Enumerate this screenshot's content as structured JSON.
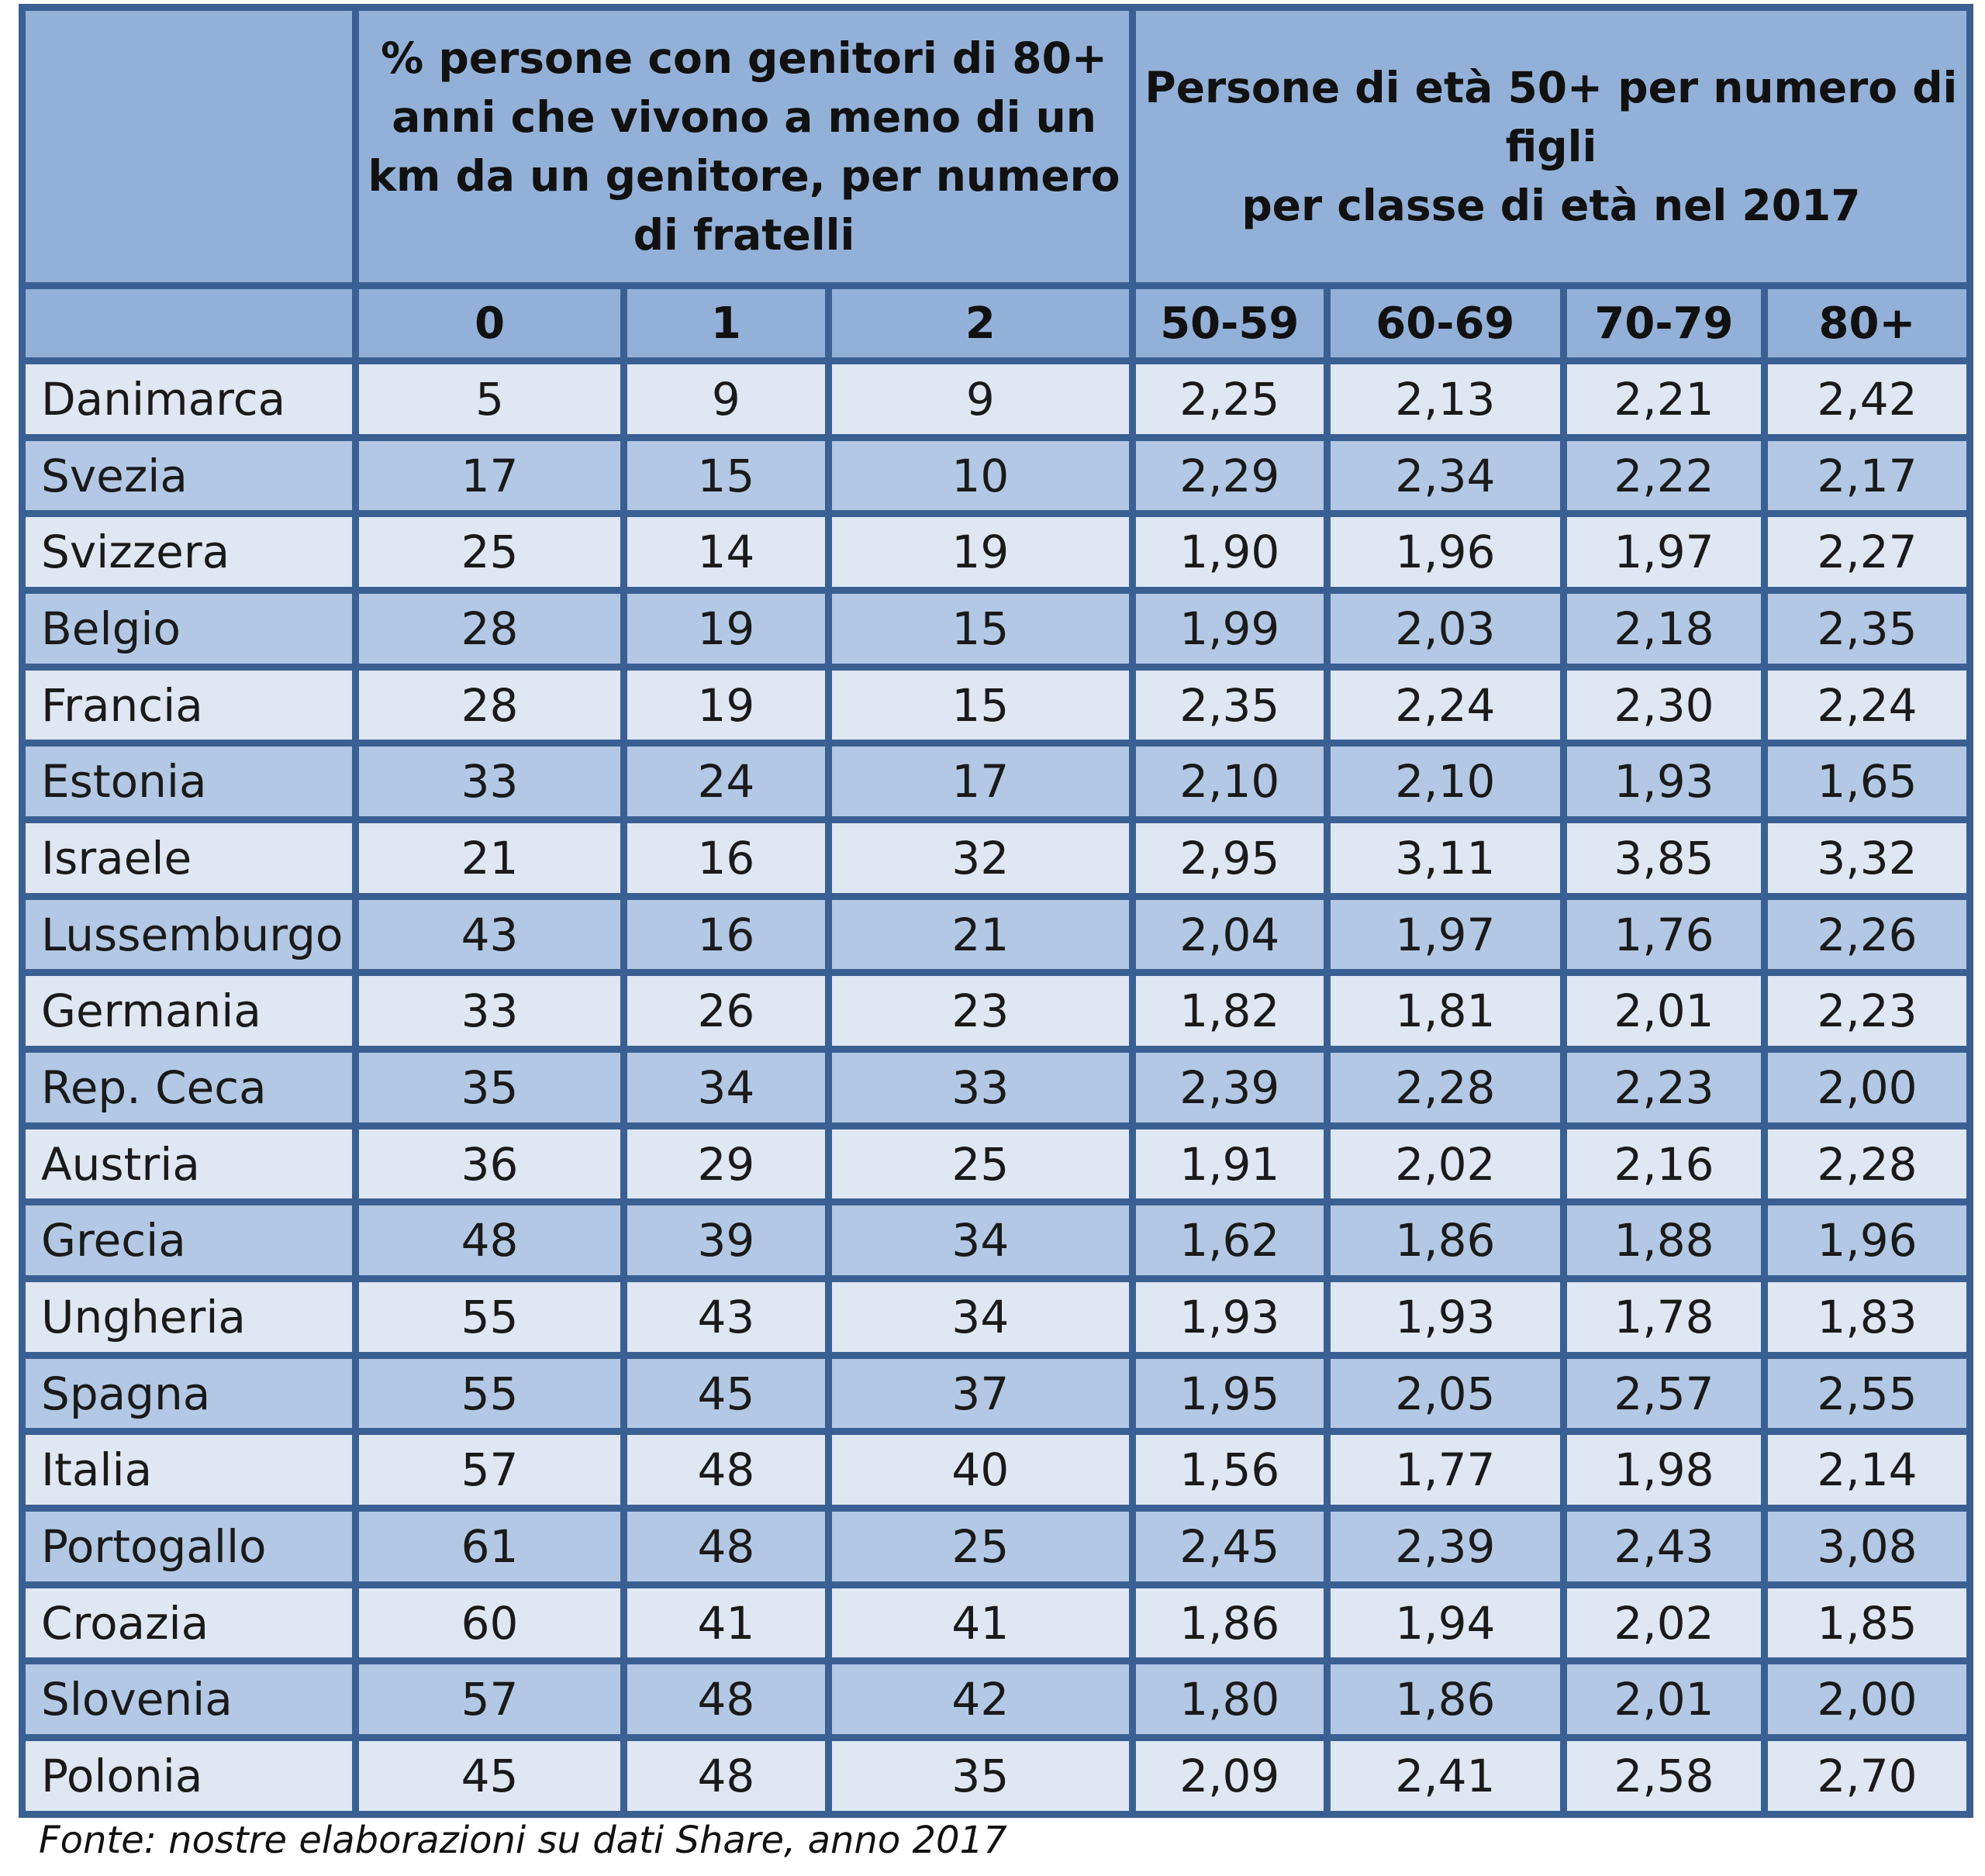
{
  "header": {
    "group1": "% persone con genitori di 80+ anni che vivono a meno di un km da un genitore, per numero di fratelli",
    "group1_lines": [
      "% persone con genitori di 80+",
      "anni che vivono a meno di un",
      "km da un genitore, per numero",
      "di fratelli"
    ],
    "group2": "Persone di età 50+ per numero di figli per classe di età nel 2017",
    "group2_lines": [
      "Persone di età 50+ per numero di",
      "figli",
      "per classe di età nel 2017"
    ],
    "subheaders": [
      "0",
      "1",
      "2",
      "50-59",
      "60-69",
      "70-79",
      "80+"
    ]
  },
  "rows": [
    {
      "country": "Danimarca",
      "values": [
        "5",
        "9",
        "9",
        "2,25",
        "2,13",
        "2,21",
        "2,42"
      ]
    },
    {
      "country": "Svezia",
      "values": [
        "17",
        "15",
        "10",
        "2,29",
        "2,34",
        "2,22",
        "2,17"
      ]
    },
    {
      "country": "Svizzera",
      "values": [
        "25",
        "14",
        "19",
        "1,90",
        "1,96",
        "1,97",
        "2,27"
      ]
    },
    {
      "country": "Belgio",
      "values": [
        "28",
        "19",
        "15",
        "1,99",
        "2,03",
        "2,18",
        "2,35"
      ]
    },
    {
      "country": "Francia",
      "values": [
        "28",
        "19",
        "15",
        "2,35",
        "2,24",
        "2,30",
        "2,24"
      ]
    },
    {
      "country": "Estonia",
      "values": [
        "33",
        "24",
        "17",
        "2,10",
        "2,10",
        "1,93",
        "1,65"
      ]
    },
    {
      "country": "Israele",
      "values": [
        "21",
        "16",
        "32",
        "2,95",
        "3,11",
        "3,85",
        "3,32"
      ]
    },
    {
      "country": "Lussemburgo",
      "values": [
        "43",
        "16",
        "21",
        "2,04",
        "1,97",
        "1,76",
        "2,26"
      ]
    },
    {
      "country": "Germania",
      "values": [
        "33",
        "26",
        "23",
        "1,82",
        "1,81",
        "2,01",
        "2,23"
      ]
    },
    {
      "country": "Rep. Ceca",
      "values": [
        "35",
        "34",
        "33",
        "2,39",
        "2,28",
        "2,23",
        "2,00"
      ]
    },
    {
      "country": "Austria",
      "values": [
        "36",
        "29",
        "25",
        "1,91",
        "2,02",
        "2,16",
        "2,28"
      ]
    },
    {
      "country": "Grecia",
      "values": [
        "48",
        "39",
        "34",
        "1,62",
        "1,86",
        "1,88",
        "1,96"
      ]
    },
    {
      "country": "Ungheria",
      "values": [
        "55",
        "43",
        "34",
        "1,93",
        "1,93",
        "1,78",
        "1,83"
      ]
    },
    {
      "country": "Spagna",
      "values": [
        "55",
        "45",
        "37",
        "1,95",
        "2,05",
        "2,57",
        "2,55"
      ]
    },
    {
      "country": "Italia",
      "values": [
        "57",
        "48",
        "40",
        "1,56",
        "1,77",
        "1,98",
        "2,14"
      ]
    },
    {
      "country": "Portogallo",
      "values": [
        "61",
        "48",
        "25",
        "2,45",
        "2,39",
        "2,43",
        "3,08"
      ]
    },
    {
      "country": "Croazia",
      "values": [
        "60",
        "41",
        "41",
        "1,86",
        "1,94",
        "2,02",
        "1,85"
      ]
    },
    {
      "country": "Slovenia",
      "values": [
        "57",
        "48",
        "42",
        "1,80",
        "1,86",
        "2,01",
        "2,00"
      ]
    },
    {
      "country": "Polonia",
      "values": [
        "45",
        "48",
        "35",
        "2,09",
        "2,41",
        "2,58",
        "2,70"
      ]
    }
  ],
  "source": "Fonte: nostre elaborazioni su dati Share, anno 2017"
}
